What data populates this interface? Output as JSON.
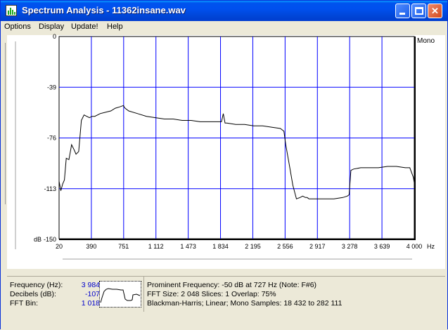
{
  "window": {
    "title": "Spectrum Analysis - 11362insane.wav"
  },
  "menu": {
    "items": [
      "Options",
      "Display",
      "Update!",
      "Help"
    ]
  },
  "plot": {
    "channel_label": "Mono",
    "y_unit_label": "dB",
    "x_unit_label": "Hz",
    "y_ticks": [
      "0",
      "-39",
      "-76",
      "-113",
      "-150"
    ],
    "x_ticks": [
      "20",
      "390",
      "751",
      "1 112",
      "1 473",
      "1 834",
      "2 195",
      "2 556",
      "2 917",
      "3 278",
      "3 639",
      "4 000"
    ],
    "grid_color": "#0000ff",
    "line_color": "#000000"
  },
  "chart_data": {
    "type": "line",
    "xlabel": "Hz",
    "ylabel": "dB",
    "xlim": [
      20,
      4000
    ],
    "ylim": [
      -150,
      0
    ],
    "series": [
      {
        "x": [
          20,
          40,
          60,
          80,
          100,
          130,
          160,
          190,
          210,
          240,
          270,
          300,
          330,
          360,
          390,
          420,
          480,
          540,
          600,
          650,
          700,
          740,
          760,
          800,
          900,
          1000,
          1100,
          1200,
          1300,
          1400,
          1500,
          1600,
          1700,
          1800,
          1840,
          1860,
          1880,
          1900,
          2000,
          2100,
          2200,
          2300,
          2400,
          2500,
          2540,
          2560,
          2600,
          2640,
          2680,
          2720,
          2750,
          2780,
          2800,
          2820,
          2840,
          2860,
          2900,
          3000,
          3100,
          3200,
          3250,
          3270,
          3290,
          3320,
          3400,
          3500,
          3600,
          3700,
          3800,
          3900,
          3950,
          3990,
          4000
        ],
        "y": [
          -107,
          -114,
          -109,
          -106,
          -90,
          -91,
          -80,
          -84,
          -87,
          -85,
          -62,
          -58,
          -59,
          -60,
          -59,
          -59,
          -57,
          -56,
          -55,
          -53,
          -52,
          -51,
          -53,
          -55,
          -57,
          -59,
          -60,
          -61,
          -61,
          -62,
          -62,
          -63,
          -63,
          -63,
          -63,
          -57,
          -64,
          -64,
          -65,
          -65,
          -66,
          -66,
          -67,
          -68,
          -70,
          -80,
          -95,
          -110,
          -120,
          -119,
          -118,
          -119,
          -119,
          -120,
          -120,
          -120,
          -120,
          -120,
          -120,
          -119,
          -118,
          -117,
          -99,
          -98,
          -97,
          -97,
          -97,
          -96,
          -96,
          -97,
          -97,
          -104,
          -108
        ]
      }
    ]
  },
  "info": {
    "frequency_label": "Frequency (Hz):",
    "frequency_value": "3 984",
    "decibels_label": "Decibels (dB):",
    "decibels_value": "-107",
    "fft_bin_label": "FFT Bin:",
    "fft_bin_value": "1 018",
    "line1": "Prominent Frequency: -50 dB at 727 Hz (Note: F#6)",
    "line2": "FFT Size: 2 048  Slices: 1  Overlap: 75%",
    "line3": "Blackman-Harris; Linear; Mono  Samples: 18 432 to 282 111"
  }
}
